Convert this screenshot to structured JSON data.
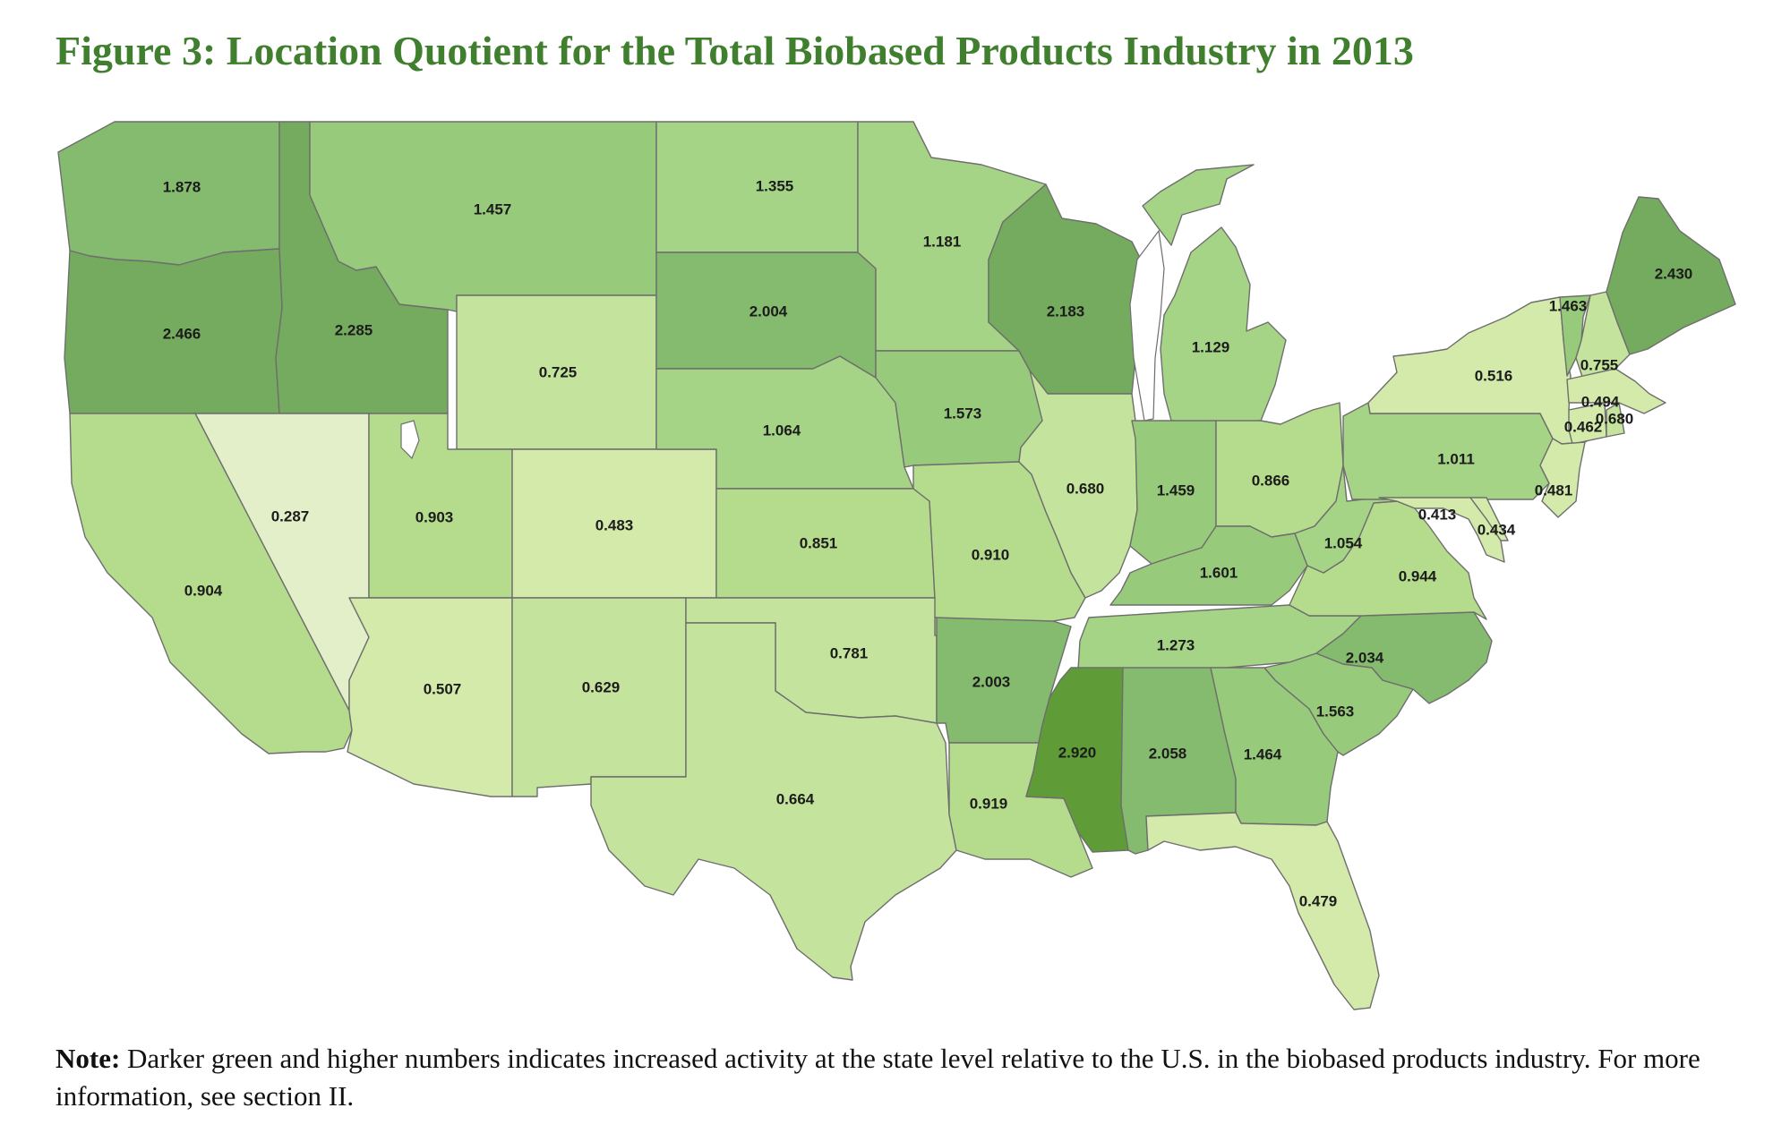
{
  "title": "Figure 3: Location Quotient for the Total Biobased Products Industry in 2013",
  "note": {
    "label": "Note:",
    "text": "Darker green and higher numbers indicates increased activity at the state level relative to the U.S. in the biobased products industry.  For more information, see section II."
  },
  "palette": {
    "0": "#e3efc9",
    "1": "#d4eaaa",
    "2": "#c4e39c",
    "3": "#b5dc8c",
    "4": "#a6d486",
    "5": "#98ca7b",
    "6": "#84bb6e",
    "7": "#75ab5e",
    "8": "#5f9c38"
  },
  "states": [
    {
      "code": "WA",
      "value": "1.878",
      "shade": 6
    },
    {
      "code": "OR",
      "value": "2.466",
      "shade": 7
    },
    {
      "code": "ID",
      "value": "2.285",
      "shade": 7
    },
    {
      "code": "MT",
      "value": "1.457",
      "shade": 5
    },
    {
      "code": "WY",
      "value": "0.725",
      "shade": 2
    },
    {
      "code": "NV",
      "value": "0.287",
      "shade": 0
    },
    {
      "code": "CA",
      "value": "0.904",
      "shade": 3
    },
    {
      "code": "UT",
      "value": "0.903",
      "shade": 3
    },
    {
      "code": "AZ",
      "value": "0.507",
      "shade": 1
    },
    {
      "code": "CO",
      "value": "0.483",
      "shade": 1
    },
    {
      "code": "NM",
      "value": "0.629",
      "shade": 2
    },
    {
      "code": "ND",
      "value": "1.355",
      "shade": 4
    },
    {
      "code": "SD",
      "value": "2.004",
      "shade": 6
    },
    {
      "code": "NE",
      "value": "1.064",
      "shade": 4
    },
    {
      "code": "KS",
      "value": "0.851",
      "shade": 3
    },
    {
      "code": "OK",
      "value": "0.781",
      "shade": 2
    },
    {
      "code": "TX",
      "value": "0.664",
      "shade": 2
    },
    {
      "code": "MN",
      "value": "1.181",
      "shade": 4
    },
    {
      "code": "IA",
      "value": "1.573",
      "shade": 5
    },
    {
      "code": "MO",
      "value": "0.910",
      "shade": 3
    },
    {
      "code": "AR",
      "value": "2.003",
      "shade": 6
    },
    {
      "code": "LA",
      "value": "0.919",
      "shade": 3
    },
    {
      "code": "WI",
      "value": "2.183",
      "shade": 7
    },
    {
      "code": "IL",
      "value": "0.680",
      "shade": 2
    },
    {
      "code": "MI",
      "value": "1.129",
      "shade": 4
    },
    {
      "code": "IN",
      "value": "1.459",
      "shade": 5
    },
    {
      "code": "OH",
      "value": "0.866",
      "shade": 3
    },
    {
      "code": "KY",
      "value": "1.601",
      "shade": 5
    },
    {
      "code": "TN",
      "value": "1.273",
      "shade": 4
    },
    {
      "code": "MS",
      "value": "2.920",
      "shade": 8
    },
    {
      "code": "AL",
      "value": "2.058",
      "shade": 6
    },
    {
      "code": "GA",
      "value": "1.464",
      "shade": 5
    },
    {
      "code": "FL",
      "value": "0.479",
      "shade": 1
    },
    {
      "code": "SC",
      "value": "1.563",
      "shade": 5
    },
    {
      "code": "NC",
      "value": "2.034",
      "shade": 6
    },
    {
      "code": "VA",
      "value": "0.944",
      "shade": 3
    },
    {
      "code": "WV",
      "value": "1.054",
      "shade": 4
    },
    {
      "code": "PA",
      "value": "1.011",
      "shade": 4
    },
    {
      "code": "NY",
      "value": "0.516",
      "shade": 1
    },
    {
      "code": "VT",
      "value": "1.463",
      "shade": 5
    },
    {
      "code": "NH",
      "value": "0.755",
      "shade": 2
    },
    {
      "code": "ME",
      "value": "2.430",
      "shade": 7
    },
    {
      "code": "MA",
      "value": "0.494",
      "shade": 1
    },
    {
      "code": "CT",
      "value": "0.462",
      "shade": 1
    },
    {
      "code": "RI",
      "value": "0.680",
      "shade": 2
    },
    {
      "code": "NJ",
      "value": "0.481",
      "shade": 1
    },
    {
      "code": "MD",
      "value": "0.413",
      "shade": 1
    },
    {
      "code": "DE",
      "value": "0.434",
      "shade": 1
    }
  ]
}
